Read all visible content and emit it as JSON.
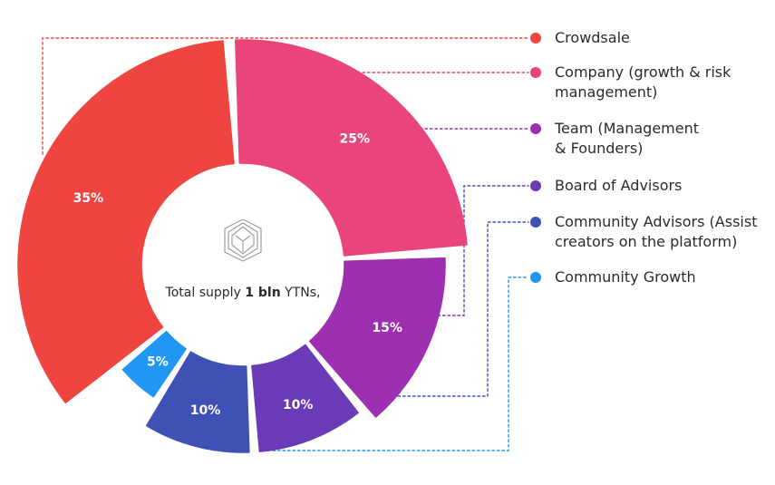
{
  "chart_data": {
    "type": "pie",
    "subtype": "donut",
    "center_text": {
      "prefix": "Total supply ",
      "bold": "1 bln",
      "suffix": " YTNs,"
    },
    "center_icon": "stacked-cube-logo-icon",
    "segments": [
      {
        "name": "Crowdsale",
        "legend_lines": [
          "Crowdsale"
        ],
        "value": 35,
        "label": "35%",
        "color": "#ef4540",
        "outer": "large"
      },
      {
        "name": "Company (growth & risk management)",
        "legend_lines": [
          "Company (growth & risk",
          "management)"
        ],
        "value": 25,
        "label": "25%",
        "color": "#e9457b",
        "outer": "large"
      },
      {
        "name": "Team (Management & Founders)",
        "legend_lines": [
          "Team (Management",
          "& Founders)"
        ],
        "value": 15,
        "label": "15%",
        "color": "#9c30b0",
        "outer": "medium"
      },
      {
        "name": "Board of Advisors",
        "legend_lines": [
          "Board of Advisors"
        ],
        "value": 10,
        "label": "10%",
        "color": "#6a3ab7",
        "outer": "small"
      },
      {
        "name": "Community Advisors (Assist creators on the platform)",
        "legend_lines": [
          "Community Advisors (Assist",
          "creators on the platform)"
        ],
        "value": 10,
        "label": "10%",
        "color": "#3f51b5",
        "outer": "small"
      },
      {
        "name": "Community Growth",
        "legend_lines": [
          "Community Growth"
        ],
        "value": 5,
        "label": "5%",
        "color": "#2196f3",
        "outer": "tiny"
      }
    ]
  }
}
